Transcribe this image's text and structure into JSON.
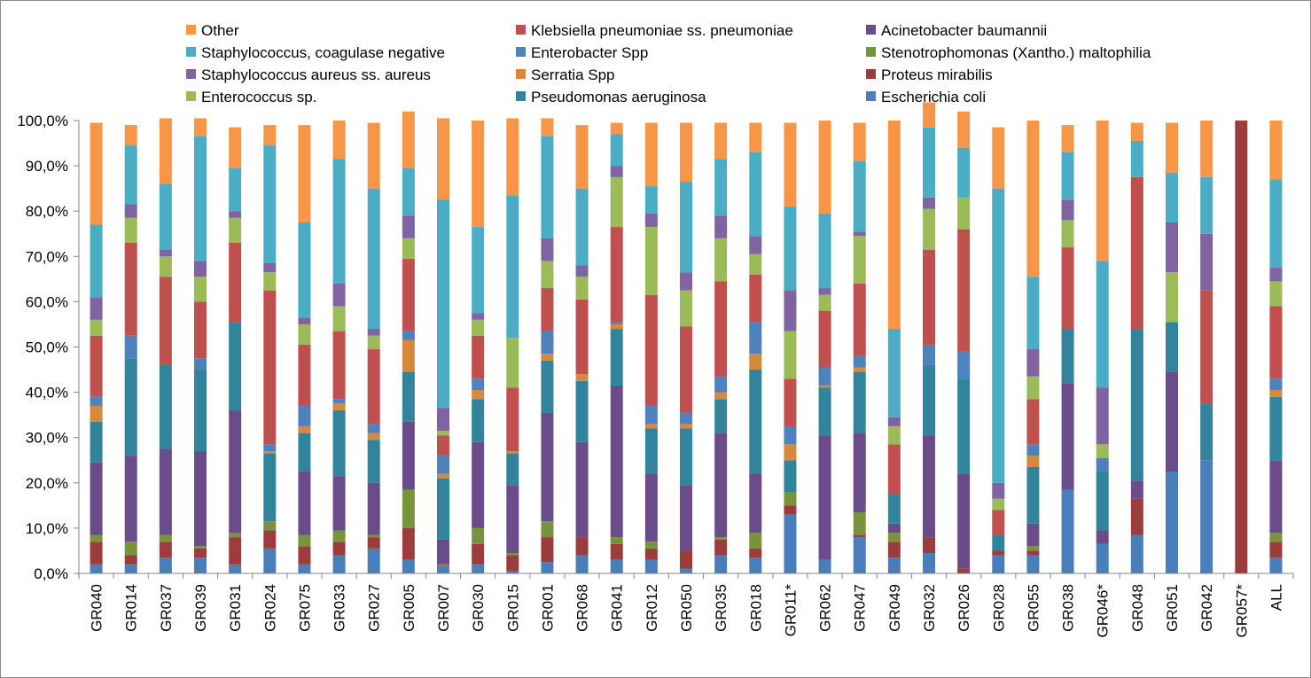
{
  "chart_data": {
    "type": "bar",
    "stacked": true,
    "percent_stacked": true,
    "title": "",
    "xlabel": "",
    "ylabel": "",
    "ylim": [
      0,
      100
    ],
    "y_ticks": [
      "0,0%",
      "10,0%",
      "20,0%",
      "30,0%",
      "40,0%",
      "50,0%",
      "60,0%",
      "70,0%",
      "80,0%",
      "90,0%",
      "100,0%"
    ],
    "grid": false,
    "legend_position": "top",
    "categories": [
      "GR040",
      "GR014",
      "GR037",
      "GR039",
      "GR031",
      "GR024",
      "GR075",
      "GR033",
      "GR027",
      "GR005",
      "GR007",
      "GR030",
      "GR015",
      "GR001",
      "GR068",
      "GR041",
      "GR012",
      "GR050",
      "GR035",
      "GR018",
      "GR011*",
      "GR062",
      "GR047",
      "GR049",
      "GR032",
      "GR026",
      "GR028",
      "GR055",
      "GR038",
      "GR046*",
      "GR048",
      "GR051",
      "GR042",
      "GR057*",
      "ALL"
    ],
    "series": [
      {
        "name": "Escherichia coli",
        "color": "#4A7EBB",
        "values": [
          2,
          2,
          3.5,
          3.5,
          2,
          5.5,
          2,
          4,
          5.5,
          3,
          1.5,
          2,
          0.5,
          2.5,
          4,
          3,
          3,
          1,
          4,
          3.5,
          13,
          3,
          8,
          3.5,
          4.5,
          0,
          4,
          4,
          18.5,
          6.5,
          8.5,
          22.5,
          25,
          0,
          3.5
        ]
      },
      {
        "name": "Proteus mirabilis",
        "color": "#9C3C3C",
        "values": [
          5,
          2,
          3.5,
          2,
          6,
          4,
          4,
          3,
          2.5,
          7,
          0.2,
          4.5,
          3.5,
          5.5,
          4,
          3.5,
          2.5,
          4,
          3.5,
          2,
          2,
          0,
          0.5,
          3.5,
          3.5,
          1,
          1,
          1,
          0,
          0,
          8,
          0,
          0,
          100,
          3.5
        ]
      },
      {
        "name": "Stenotrophomonas (Xantho.) maltophilia",
        "color": "#77933C",
        "values": [
          1.5,
          3,
          1.5,
          0.5,
          1,
          2,
          2.5,
          2.5,
          0.5,
          8.5,
          0.3,
          3.5,
          0.5,
          3.5,
          0,
          1.5,
          1.5,
          0,
          0.5,
          3.5,
          3,
          0,
          5,
          2,
          0,
          0,
          0,
          1,
          0,
          0,
          0,
          0,
          0,
          0,
          2
        ]
      },
      {
        "name": "Acinetobacter baumannii",
        "color": "#6B4C8A",
        "values": [
          16,
          19,
          19,
          21,
          27,
          0,
          14,
          12,
          11.5,
          15,
          5.5,
          19,
          15,
          24,
          21,
          33.5,
          15,
          14.5,
          23,
          13,
          0,
          27.5,
          17.5,
          2,
          22.5,
          21,
          0,
          5,
          23.5,
          3,
          4,
          22,
          0,
          0,
          16
        ]
      },
      {
        "name": "Pseudomonas aeruginosa",
        "color": "#31849B",
        "values": [
          9,
          21.5,
          18.5,
          18,
          19.5,
          15,
          8.5,
          14.5,
          9.5,
          11,
          13.5,
          9.5,
          7,
          11.5,
          13.5,
          12.5,
          10,
          12.5,
          7.5,
          23,
          7,
          10.5,
          13.5,
          6.5,
          15.5,
          21,
          3.5,
          12.5,
          12,
          13,
          33.5,
          11,
          12.5,
          0,
          14
        ]
      },
      {
        "name": "Serratia Spp",
        "color": "#D6883C",
        "values": [
          3.5,
          0,
          0,
          0,
          0,
          0.5,
          1.5,
          1.5,
          1.5,
          7,
          1,
          2,
          0.5,
          1.5,
          1.5,
          1,
          1,
          1,
          1.5,
          3.5,
          3.5,
          0.5,
          1,
          0,
          0,
          0,
          0,
          2.5,
          0,
          0,
          0,
          0,
          0,
          0,
          1.5
        ]
      },
      {
        "name": "Enterobacter Spp",
        "color": "#4F81BD",
        "values": [
          2,
          5,
          0,
          2.5,
          0,
          1.5,
          4.5,
          1,
          2,
          2,
          4,
          2.5,
          0,
          5,
          0,
          0.5,
          4,
          2.5,
          3.5,
          7,
          4,
          4,
          2.5,
          0,
          4.5,
          6,
          0,
          2.5,
          0,
          3,
          0,
          0,
          0,
          0,
          2.5
        ]
      },
      {
        "name": "Klebsiella pneumoniae ss. pneumoniae",
        "color": "#C0504D",
        "values": [
          13.5,
          20.5,
          19.5,
          12.5,
          17.5,
          34,
          13.5,
          15,
          16.5,
          16,
          4.5,
          9.5,
          14,
          9.5,
          16.5,
          21,
          24.5,
          19,
          21,
          10.5,
          10.5,
          12.5,
          16,
          11,
          21,
          27,
          5.5,
          10,
          18,
          0,
          33.5,
          0,
          25,
          0,
          16
        ]
      },
      {
        "name": "Enterococcus sp.",
        "color": "#9BBB59",
        "values": [
          3.5,
          5.5,
          4.5,
          5.5,
          5.5,
          4,
          4.5,
          5.5,
          3,
          4.5,
          1,
          3.5,
          11,
          6,
          5,
          11,
          15,
          8,
          9.5,
          4.5,
          10.5,
          3.5,
          10.5,
          4,
          9,
          7,
          2.5,
          5,
          6,
          3,
          0,
          11,
          0,
          0,
          5.5
        ]
      },
      {
        "name": "Staphylococcus aureus ss. aureus",
        "color": "#8064A2",
        "values": [
          5,
          3,
          1.5,
          3.5,
          1.5,
          2,
          1.5,
          5,
          1.5,
          5,
          5,
          1.5,
          0,
          5,
          2.5,
          2.5,
          3,
          4,
          5,
          4,
          9,
          1.5,
          1,
          2,
          2.5,
          0,
          3.5,
          6,
          4.5,
          12.5,
          0,
          11,
          12.5,
          0,
          3
        ]
      },
      {
        "name": "Staphylococcus, coagulase negative",
        "color": "#4BACC6",
        "values": [
          16,
          13,
          14.5,
          27.5,
          9.5,
          26,
          21,
          27.5,
          31,
          10.5,
          46,
          19,
          31.5,
          22.5,
          17,
          7,
          6,
          20,
          12.5,
          18.5,
          18.5,
          16.5,
          15.5,
          19.5,
          15.5,
          11,
          65,
          16,
          10.5,
          28,
          8,
          11,
          12.5,
          0,
          19.5
        ]
      },
      {
        "name": "Other",
        "color": "#F79646",
        "values": [
          22.5,
          4.5,
          14.5,
          4,
          9,
          4.5,
          21.5,
          8.5,
          14.5,
          12.5,
          18,
          23.5,
          17,
          4,
          14,
          2.5,
          14,
          13,
          8,
          6.5,
          18.5,
          20.5,
          8.5,
          46,
          5.5,
          8,
          13.5,
          34.5,
          6,
          31,
          4,
          11,
          12.5,
          0,
          13
        ]
      }
    ]
  }
}
